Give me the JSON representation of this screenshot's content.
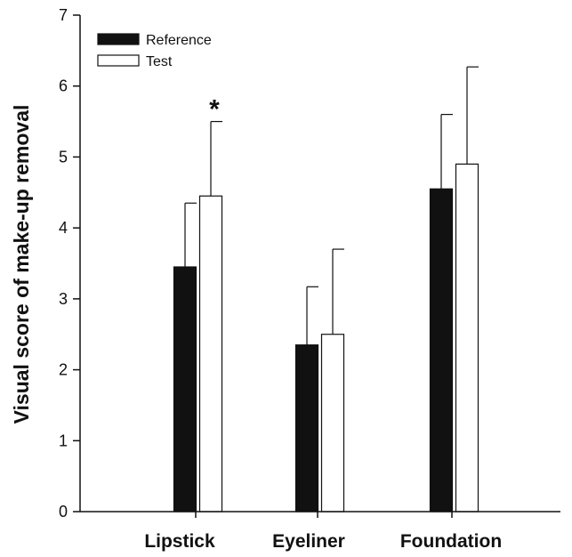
{
  "chart_data": {
    "type": "bar",
    "title": "",
    "xlabel": "",
    "ylabel": "Visual score of make-up removal",
    "categories": [
      "Lipstick",
      "Eyeliner",
      "Foundation"
    ],
    "series": [
      {
        "name": "Reference",
        "values": [
          3.45,
          2.35,
          4.55
        ],
        "errors": [
          0.9,
          0.82,
          1.05
        ],
        "color": "#111111"
      },
      {
        "name": "Test",
        "values": [
          4.45,
          2.5,
          4.9
        ],
        "errors": [
          1.05,
          1.2,
          1.37
        ],
        "color": "#ffffff"
      }
    ],
    "ylim": [
      0,
      7
    ],
    "yticks": [
      "0",
      "1",
      "2",
      "3",
      "4",
      "5",
      "6",
      "7"
    ],
    "legend_position": "top-left",
    "grid": false,
    "annotations": [
      {
        "text": "*",
        "category": "Lipstick",
        "series": "Test"
      }
    ]
  }
}
